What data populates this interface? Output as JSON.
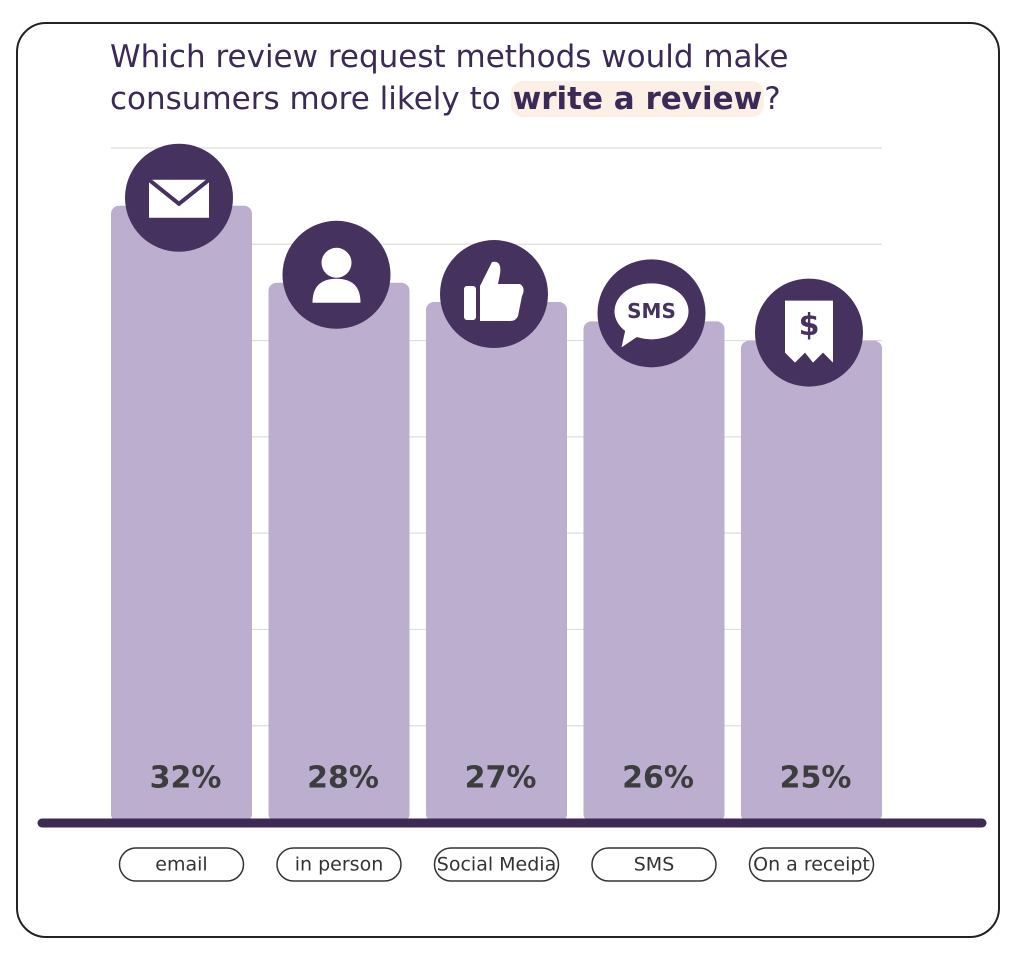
{
  "chart_data": {
    "type": "bar",
    "title": [
      "Which review request methods would make",
      "consumers more likely to"
    ],
    "title_emphasis": "write a review",
    "title_end": "?",
    "categories": [
      "email",
      "in person",
      "Social Media",
      "SMS",
      "On a receipt"
    ],
    "values": [
      32,
      28,
      27,
      26,
      25
    ],
    "value_labels": [
      "32%",
      "28%",
      "27%",
      "26%",
      "25%"
    ],
    "color": "#bbaecf",
    "ylim": [
      0,
      35
    ],
    "yticks": [
      5,
      10,
      15,
      20,
      25,
      30,
      35
    ],
    "grid": true
  }
}
